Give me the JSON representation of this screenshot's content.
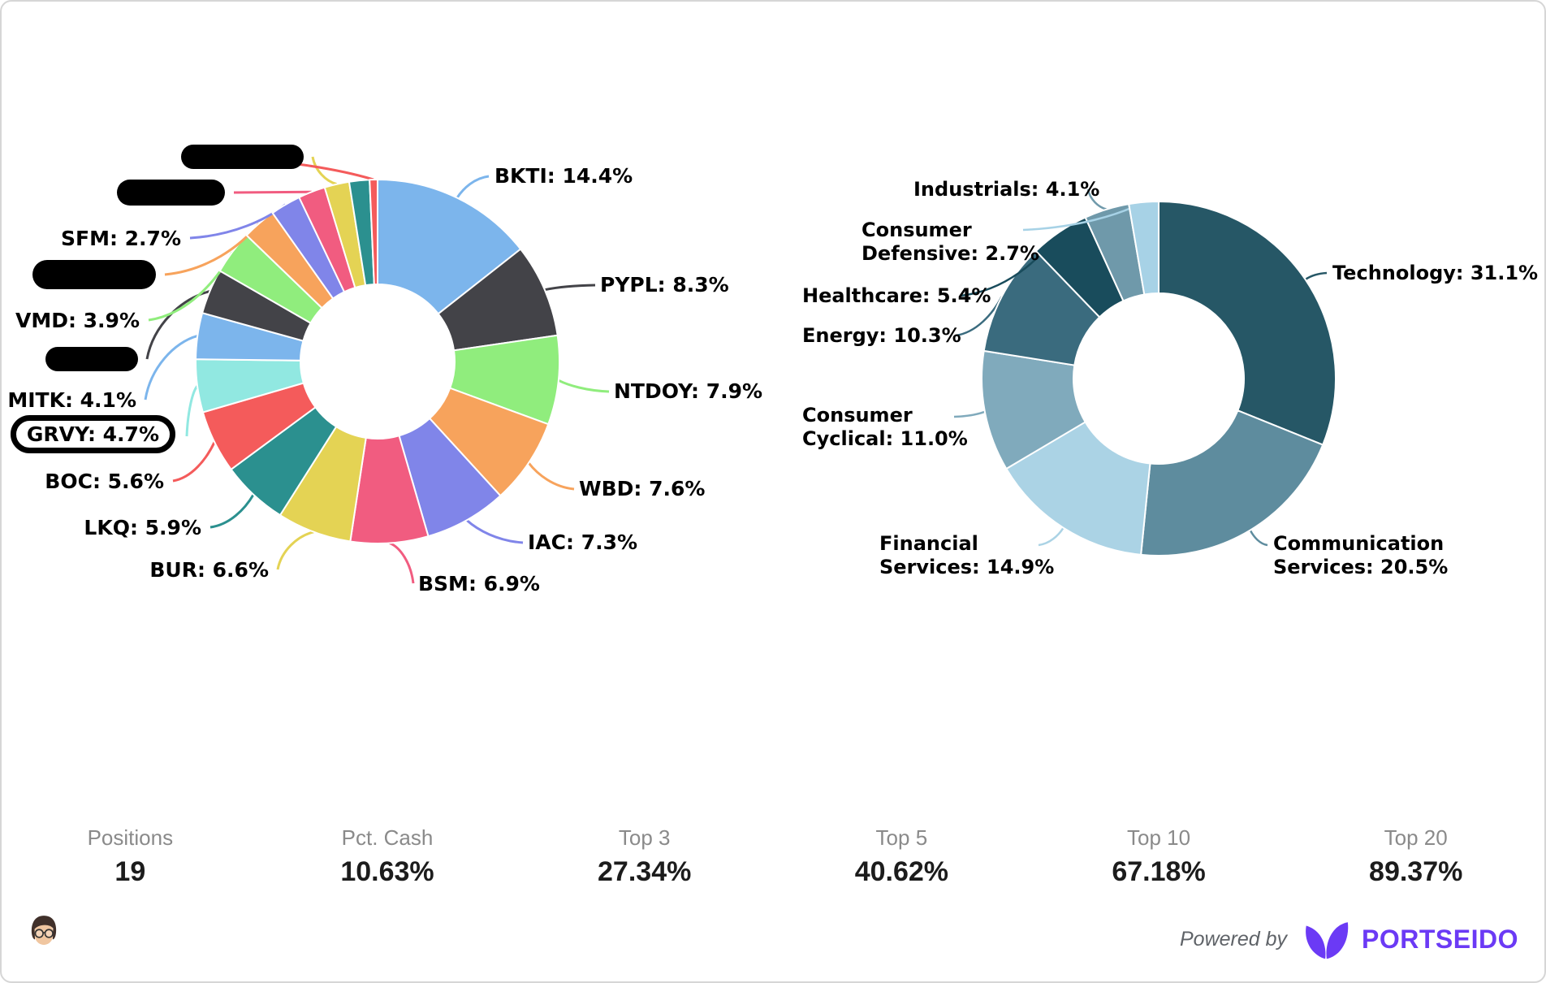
{
  "chart_data": [
    {
      "type": "pie",
      "name": "holdings-allocation",
      "donut": true,
      "legend_position": "callout-labels",
      "note": "donut of individual positions, percentages of invested value; four labels are redacted with black bars; GRVY label is circled",
      "slices": [
        {
          "id": "BKTI",
          "label": "BKTI: 14.4%",
          "value": 14.4,
          "color": "#7cb5ec"
        },
        {
          "id": "PYPL",
          "label": "PYPL: 8.3%",
          "value": 8.3,
          "color": "#434348"
        },
        {
          "id": "NTDOY",
          "label": "NTDOY: 7.9%",
          "value": 7.9,
          "color": "#90ed7d"
        },
        {
          "id": "WBD",
          "label": "WBD: 7.6%",
          "value": 7.6,
          "color": "#f7a35c"
        },
        {
          "id": "IAC",
          "label": "IAC: 7.3%",
          "value": 7.3,
          "color": "#8085e9"
        },
        {
          "id": "BSM",
          "label": "BSM: 6.9%",
          "value": 6.9,
          "color": "#f15c80"
        },
        {
          "id": "BUR",
          "label": "BUR: 6.6%",
          "value": 6.6,
          "color": "#e4d354"
        },
        {
          "id": "LKQ",
          "label": "LKQ: 5.9%",
          "value": 5.9,
          "color": "#2b908f"
        },
        {
          "id": "BOC",
          "label": "BOC: 5.6%",
          "value": 5.6,
          "color": "#f45b5b"
        },
        {
          "id": "GRVY",
          "label": "GRVY: 4.7%",
          "value": 4.7,
          "color": "#91e8e1",
          "highlighted": true
        },
        {
          "id": "MITK",
          "label": "MITK: 4.1%",
          "value": 4.1,
          "color": "#7cb5ec"
        },
        {
          "id": "hidden-1",
          "redacted": true,
          "value": 4.0,
          "estimated": true,
          "color": "#434348"
        },
        {
          "id": "VMD",
          "label": "VMD: 3.9%",
          "value": 3.9,
          "color": "#90ed7d"
        },
        {
          "id": "hidden-2",
          "redacted": true,
          "value": 3.0,
          "estimated": true,
          "color": "#f7a35c"
        },
        {
          "id": "SFM",
          "label": "SFM: 2.7%",
          "value": 2.7,
          "color": "#8085e9"
        },
        {
          "id": "hidden-3",
          "redacted": true,
          "value": 2.4,
          "estimated": true,
          "color": "#f15c80"
        },
        {
          "id": "hidden-4",
          "redacted": true,
          "value": 2.2,
          "estimated": true,
          "color": "#e4d354"
        },
        {
          "id": "hidden-5",
          "value": 1.8,
          "estimated": true,
          "color": "#2b908f"
        },
        {
          "id": "hidden-6",
          "value": 0.7,
          "estimated": true,
          "color": "#f45b5b"
        }
      ]
    },
    {
      "type": "pie",
      "name": "sector-allocation",
      "donut": true,
      "legend_position": "callout-labels",
      "slices": [
        {
          "id": "technology",
          "name": "Technology",
          "label": "Technology: 31.1%",
          "value": 31.1,
          "color": "#265766"
        },
        {
          "id": "communication-services",
          "name": "Communication Services",
          "label": "Communication\nServices: 20.5%",
          "value": 20.5,
          "color": "#5e8c9e"
        },
        {
          "id": "financial-services",
          "name": "Financial Services",
          "label": "Financial\nServices: 14.9%",
          "value": 14.9,
          "color": "#abd3e5"
        },
        {
          "id": "consumer-cyclical",
          "name": "Consumer Cyclical",
          "label": "Consumer\nCyclical: 11.0%",
          "value": 11.0,
          "color": "#80aabc"
        },
        {
          "id": "energy",
          "name": "Energy",
          "label": "Energy: 10.3%",
          "value": 10.3,
          "color": "#3a6b7e"
        },
        {
          "id": "healthcare",
          "name": "Healthcare",
          "label": "Healthcare: 5.4%",
          "value": 5.4,
          "color": "#194c5c"
        },
        {
          "id": "industrials",
          "name": "Industrials",
          "label": "Industrials: 4.1%",
          "value": 4.1,
          "color": "#6f99aa"
        },
        {
          "id": "consumer-defensive",
          "name": "Consumer Defensive",
          "label": "Consumer\nDefensive: 2.7%",
          "value": 2.7,
          "color": "#a7d2e6"
        }
      ]
    }
  ],
  "stats": [
    {
      "label": "Positions",
      "value": "19"
    },
    {
      "label": "Pct. Cash",
      "value": "10.63%"
    },
    {
      "label": "Top 3",
      "value": "27.34%"
    },
    {
      "label": "Top 5",
      "value": "40.62%"
    },
    {
      "label": "Top 10",
      "value": "67.18%"
    },
    {
      "label": "Top 20",
      "value": "89.37%"
    }
  ],
  "footer": {
    "powered_by": "Powered by",
    "brand": "PORTSEIDO",
    "brand_color": "#6b3af5"
  }
}
